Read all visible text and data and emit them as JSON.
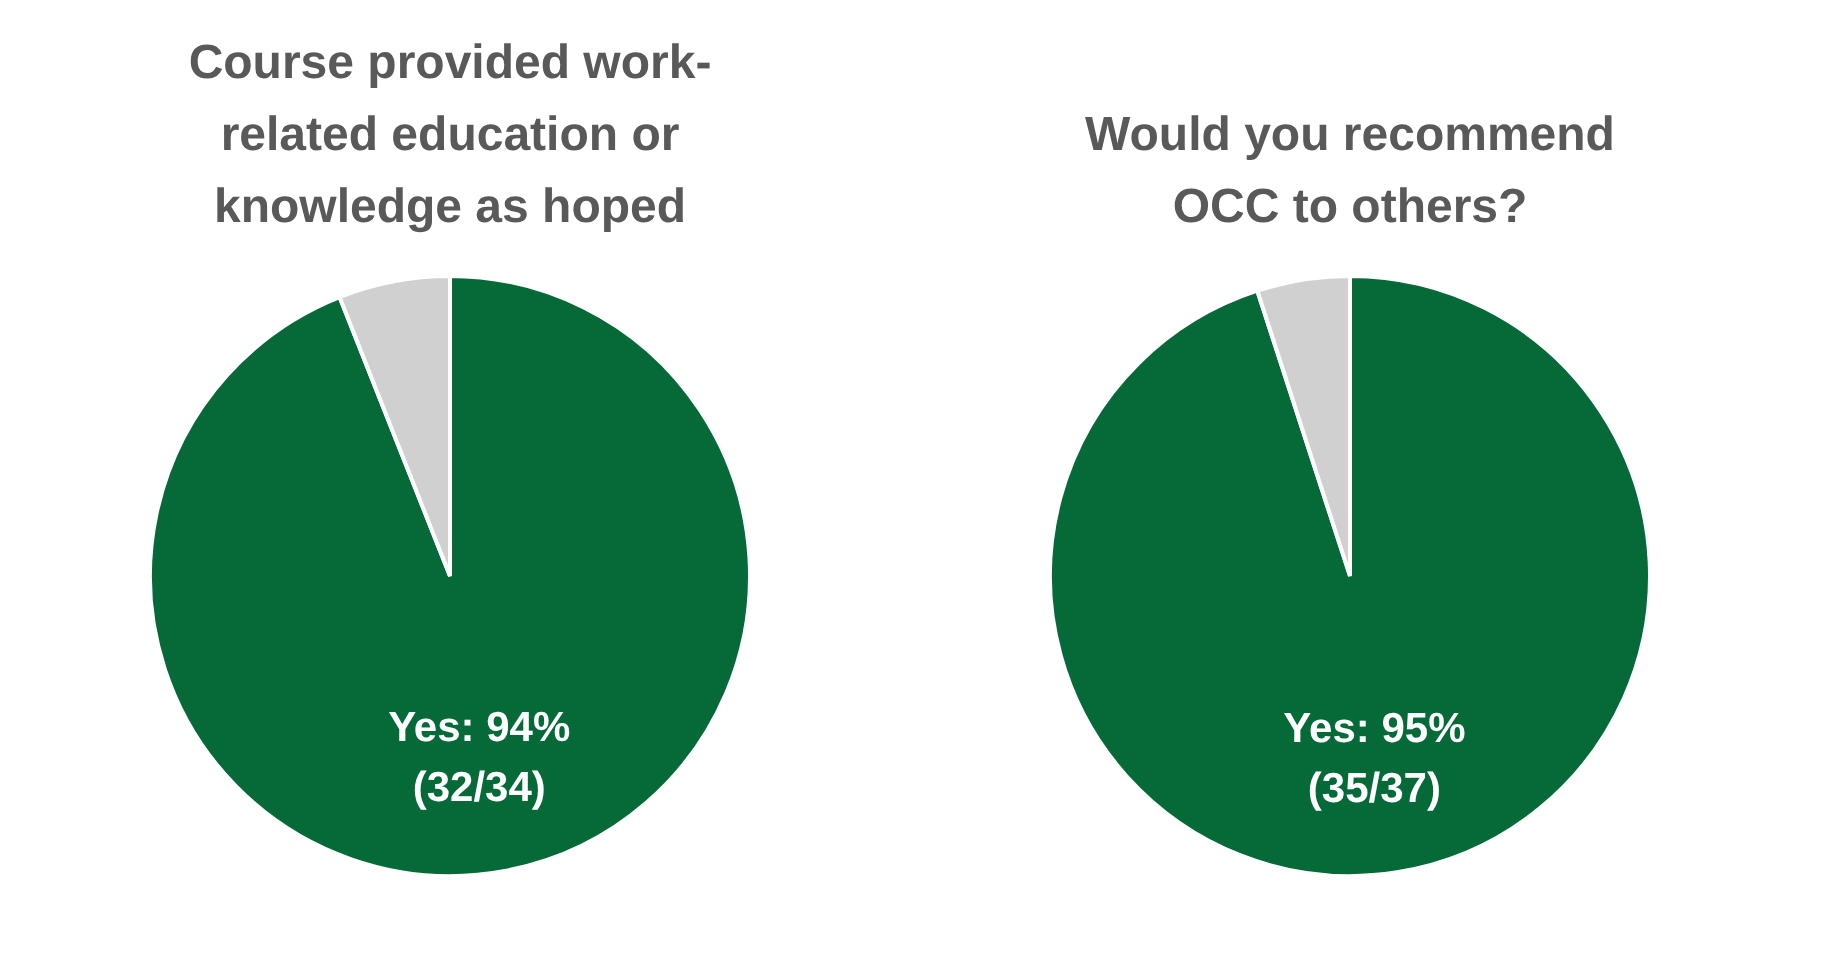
{
  "chart_data": [
    {
      "type": "pie",
      "title": "Course provided work-related education or knowledge as hoped",
      "categories": [
        "Yes",
        null
      ],
      "values": [
        94,
        6
      ],
      "colors": [
        "#066a38",
        "#d0d0d0"
      ],
      "value_labels": [
        "94%\n(32/34)",
        null
      ],
      "legend": false
    },
    {
      "type": "pie",
      "title": "Would you recommend OCC to others?",
      "categories": [
        "Yes",
        null
      ],
      "values": [
        95,
        5
      ],
      "colors": [
        "#066a38",
        "#d0d0d0"
      ],
      "value_labels": [
        "95%\n(35/37)",
        null
      ],
      "legend": false
    }
  ]
}
